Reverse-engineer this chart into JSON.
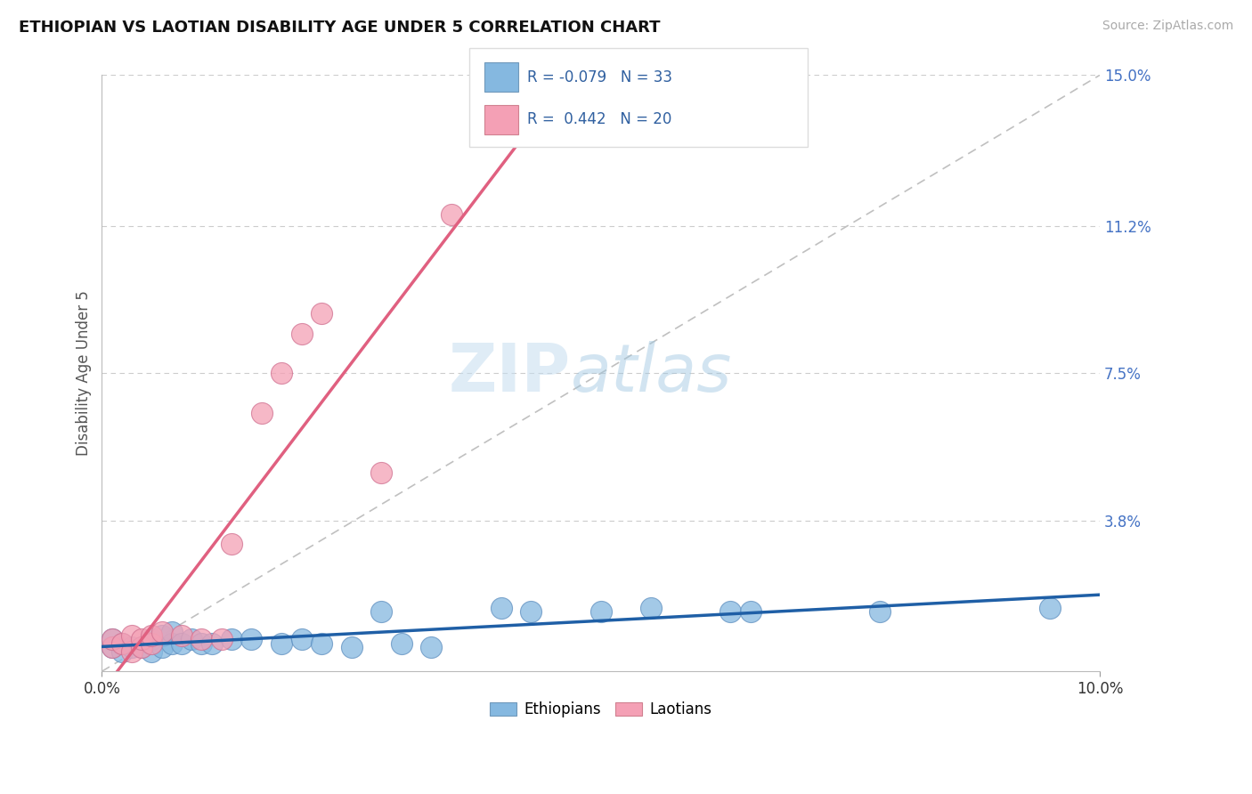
{
  "title": "ETHIOPIAN VS LAOTIAN DISABILITY AGE UNDER 5 CORRELATION CHART",
  "source": "Source: ZipAtlas.com",
  "ylabel": "Disability Age Under 5",
  "xlim": [
    0.0,
    0.1
  ],
  "ylim": [
    0.0,
    0.15
  ],
  "ytick_vals": [
    0.038,
    0.075,
    0.112,
    0.15
  ],
  "ytick_labels": [
    "3.8%",
    "7.5%",
    "11.2%",
    "15.0%"
  ],
  "xtick_vals": [
    0.0,
    0.1
  ],
  "xtick_labels": [
    "0.0%",
    "10.0%"
  ],
  "legend_r_ethiopians": "-0.079",
  "legend_n_ethiopians": "33",
  "legend_r_laotians": "0.442",
  "legend_n_laotians": "20",
  "color_ethiopians": "#85b8e0",
  "color_laotians": "#f4a0b5",
  "trendline_ethiopians_color": "#1f5fa6",
  "trendline_laotians_color": "#e06080",
  "diagonal_color": "#c0c0c0",
  "grid_color": "#cccccc",
  "background_color": "#ffffff",
  "watermark_zip": "ZIP",
  "watermark_atlas": "atlas",
  "ethiopians_x": [
    0.001,
    0.001,
    0.002,
    0.002,
    0.003,
    0.004,
    0.005,
    0.005,
    0.006,
    0.006,
    0.007,
    0.007,
    0.008,
    0.009,
    0.01,
    0.011,
    0.013,
    0.015,
    0.018,
    0.02,
    0.022,
    0.025,
    0.028,
    0.03,
    0.033,
    0.04,
    0.043,
    0.05,
    0.055,
    0.063,
    0.065,
    0.078,
    0.095
  ],
  "ethiopians_y": [
    0.006,
    0.008,
    0.005,
    0.007,
    0.006,
    0.006,
    0.005,
    0.008,
    0.006,
    0.009,
    0.007,
    0.01,
    0.007,
    0.008,
    0.007,
    0.007,
    0.008,
    0.008,
    0.007,
    0.008,
    0.007,
    0.006,
    0.015,
    0.007,
    0.006,
    0.016,
    0.015,
    0.015,
    0.016,
    0.015,
    0.015,
    0.015,
    0.016
  ],
  "laotians_x": [
    0.001,
    0.001,
    0.002,
    0.003,
    0.003,
    0.004,
    0.004,
    0.005,
    0.005,
    0.006,
    0.008,
    0.01,
    0.012,
    0.013,
    0.016,
    0.018,
    0.02,
    0.022,
    0.028,
    0.035
  ],
  "laotians_y": [
    0.006,
    0.008,
    0.007,
    0.005,
    0.009,
    0.006,
    0.008,
    0.007,
    0.009,
    0.01,
    0.009,
    0.008,
    0.008,
    0.032,
    0.065,
    0.075,
    0.085,
    0.09,
    0.05,
    0.115
  ]
}
